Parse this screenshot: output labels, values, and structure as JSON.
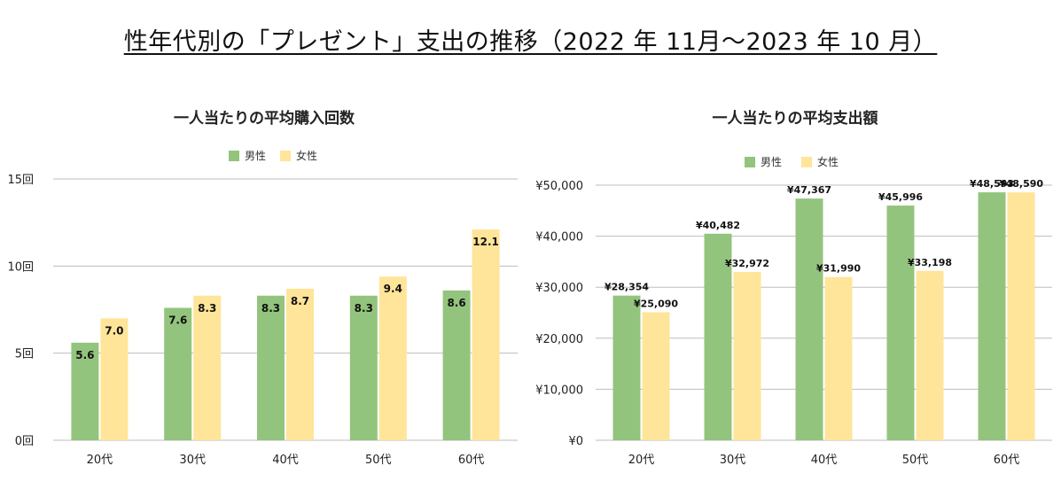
{
  "page_title": "性年代別の「プレゼント」支出の推移（2022 年 11月～2023 年 10 月）",
  "colors": {
    "male": "#93c47d",
    "female": "#ffe599",
    "grid": "#bdbdbd",
    "text": "#111111"
  },
  "chart_data": [
    {
      "type": "bar",
      "title": "一人当たりの平均購入回数",
      "categories": [
        "20代",
        "30代",
        "40代",
        "50代",
        "60代"
      ],
      "series": [
        {
          "name": "男性",
          "values": [
            5.6,
            7.6,
            8.3,
            8.3,
            8.6
          ],
          "labels": [
            "5.6",
            "7.6",
            "8.3",
            "8.3",
            "8.6"
          ]
        },
        {
          "name": "女性",
          "values": [
            7.0,
            8.3,
            8.7,
            9.4,
            12.1
          ],
          "labels": [
            "7.0",
            "8.3",
            "8.7",
            "9.4",
            "12.1"
          ]
        }
      ],
      "ylim": [
        0,
        15
      ],
      "yticks": [
        0,
        5,
        10,
        15
      ],
      "ytick_labels": [
        "0回",
        "5回",
        "10回",
        "15回"
      ],
      "legend_position": "top-center",
      "grid": true
    },
    {
      "type": "bar",
      "title": "一人当たりの平均支出額",
      "categories": [
        "20代",
        "30代",
        "40代",
        "50代",
        "60代"
      ],
      "series": [
        {
          "name": "男性",
          "values": [
            28354,
            40482,
            47367,
            45996,
            48593
          ],
          "labels": [
            "¥28,354",
            "¥40,482",
            "¥47,367",
            "¥45,996",
            "¥48,593"
          ]
        },
        {
          "name": "女性",
          "values": [
            25090,
            32972,
            31990,
            33198,
            48590
          ],
          "labels": [
            "¥25,090",
            "¥32,972",
            "¥31,990",
            "¥33,198",
            "¥48,590"
          ]
        }
      ],
      "ylim": [
        0,
        50000
      ],
      "yticks": [
        0,
        10000,
        20000,
        30000,
        40000,
        50000
      ],
      "ytick_labels": [
        "¥0",
        "¥10,000",
        "¥20,000",
        "¥30,000",
        "¥40,000",
        "¥50,000"
      ],
      "legend_position": "top-center",
      "grid": true
    }
  ]
}
